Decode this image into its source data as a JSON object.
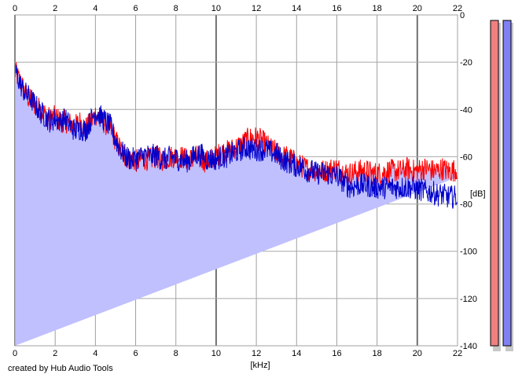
{
  "credit": "created by Hub Audio Tools",
  "chart_data": {
    "type": "area",
    "xlabel": "[kHz]",
    "ylabel": "[dB]",
    "xlim": [
      0,
      22
    ],
    "ylim": [
      -140,
      0
    ],
    "x_ticks": [
      "0",
      "2",
      "4",
      "6",
      "8",
      "10",
      "12",
      "14",
      "16",
      "18",
      "20",
      "22"
    ],
    "y_ticks": [
      "0",
      "-20",
      "-40",
      "-60",
      "-80",
      "-100",
      "-120",
      "-140"
    ],
    "grid": true,
    "x_kHz": [
      0,
      0.25,
      0.5,
      0.75,
      1,
      1.25,
      1.5,
      1.75,
      2,
      2.25,
      2.5,
      2.75,
      3,
      3.25,
      3.5,
      3.75,
      4,
      4.25,
      4.5,
      4.75,
      5,
      5.25,
      5.5,
      5.75,
      6,
      6.25,
      6.5,
      6.75,
      7,
      7.25,
      7.5,
      7.75,
      8,
      8.25,
      8.5,
      8.75,
      9,
      9.25,
      9.5,
      9.75,
      10,
      10.25,
      10.5,
      10.75,
      11,
      11.25,
      11.5,
      11.75,
      12,
      12.25,
      12.5,
      12.75,
      13,
      13.25,
      13.5,
      13.75,
      14,
      14.25,
      14.5,
      14.75,
      15,
      15.25,
      15.5,
      15.75,
      16,
      16.25,
      16.5,
      16.75,
      17,
      17.25,
      17.5,
      17.75,
      18,
      18.25,
      18.5,
      18.75,
      19,
      19.25,
      19.5,
      19.75,
      20,
      20.25,
      20.5,
      20.75,
      21,
      21.25,
      21.5,
      21.75,
      22
    ],
    "series": [
      {
        "color": "#ff0000",
        "values": [
          -24,
          -28,
          -33,
          -36,
          -38,
          -40,
          -42,
          -44,
          -43,
          -45,
          -45,
          -46,
          -47,
          -45,
          -48,
          -46,
          -42,
          -44,
          -46,
          -48,
          -53,
          -57,
          -60,
          -61,
          -62,
          -61,
          -61,
          -61,
          -60,
          -61,
          -61,
          -60,
          -60,
          -60,
          -61,
          -61,
          -60,
          -61,
          -62,
          -61,
          -60,
          -58,
          -58,
          -57,
          -56,
          -55,
          -53,
          -52,
          -52,
          -53,
          -55,
          -57,
          -58,
          -60,
          -60,
          -61,
          -63,
          -64,
          -65,
          -65,
          -66,
          -66,
          -66,
          -65,
          -65,
          -66,
          -67,
          -67,
          -66,
          -66,
          -66,
          -67,
          -67,
          -67,
          -66,
          -66,
          -66,
          -66,
          -65,
          -66,
          -66,
          -65,
          -65,
          -66,
          -66,
          -65,
          -66,
          -66,
          -65,
          -67,
          -71
        ]
      },
      {
        "color": "#0000cc",
        "values": [
          -23,
          -29,
          -33,
          -35,
          -38,
          -41,
          -43,
          -45,
          -44,
          -45,
          -44,
          -47,
          -49,
          -48,
          -49,
          -45,
          -41,
          -43,
          -45,
          -47,
          -53,
          -57,
          -60,
          -61,
          -61,
          -60,
          -59,
          -60,
          -59,
          -61,
          -61,
          -60,
          -61,
          -61,
          -62,
          -61,
          -59,
          -59,
          -61,
          -61,
          -61,
          -60,
          -60,
          -59,
          -58,
          -57,
          -56,
          -57,
          -57,
          -57,
          -57,
          -58,
          -59,
          -61,
          -62,
          -63,
          -64,
          -64,
          -66,
          -66,
          -67,
          -67,
          -67,
          -68,
          -68,
          -70,
          -72,
          -73,
          -72,
          -72,
          -72,
          -73,
          -73,
          -73,
          -73,
          -73,
          -73,
          -73,
          -73,
          -73,
          -74,
          -74,
          -75,
          -75,
          -76,
          -76,
          -77,
          -77,
          -77,
          -78,
          -79
        ]
      }
    ],
    "fill_color": "#c0c0ff",
    "level_meters": [
      {
        "name": "left",
        "color": "#f08080",
        "level": 1.0
      },
      {
        "name": "right",
        "color": "#8080f0",
        "level": 1.0
      }
    ]
  }
}
